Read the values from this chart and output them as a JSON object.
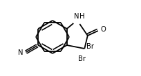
{
  "bg_color": "#ffffff",
  "line_color": "#000000",
  "lw": 1.3,
  "fs": 7.2,
  "figsize": [
    2.04,
    1.11
  ],
  "dpi": 100,
  "xlim": [
    0,
    204
  ],
  "ylim": [
    0,
    111
  ]
}
